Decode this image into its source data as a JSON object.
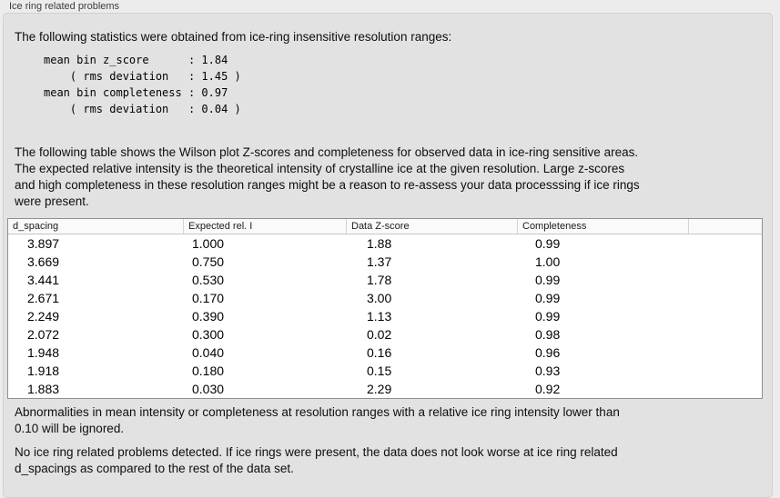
{
  "panel": {
    "title": "Ice ring related problems"
  },
  "intro_text": "The following statistics were obtained from ice-ring insensitive resolution ranges:",
  "stats_lines": [
    "mean bin z_score      : 1.84",
    "    ( rms deviation   : 1.45 )",
    "mean bin completeness : 0.97",
    "    ( rms deviation   : 0.04 )"
  ],
  "table_description_lines": [
    "The following table shows the Wilson plot Z-scores and completeness for observed data in ice-ring sensitive areas.",
    "The expected relative intensity is the theoretical intensity of crystalline ice at the given resolution. Large z-scores",
    "and high completeness in these resolution ranges might be a reason to re-assess your data processsing if ice rings",
    "were present."
  ],
  "table": {
    "columns": [
      "d_spacing",
      "Expected rel. I",
      "Data Z-score",
      "Completeness"
    ],
    "rows": [
      [
        "3.897",
        "1.000",
        "1.88",
        "0.99"
      ],
      [
        "3.669",
        "0.750",
        "1.37",
        "1.00"
      ],
      [
        "3.441",
        "0.530",
        "1.78",
        "0.99"
      ],
      [
        "2.671",
        "0.170",
        "3.00",
        "0.99"
      ],
      [
        "2.249",
        "0.390",
        "1.13",
        "0.99"
      ],
      [
        "2.072",
        "0.300",
        "0.02",
        "0.98"
      ],
      [
        "1.948",
        "0.040",
        "0.16",
        "0.96"
      ],
      [
        "1.918",
        "0.180",
        "0.15",
        "0.93"
      ],
      [
        "1.883",
        "0.030",
        "2.29",
        "0.92"
      ]
    ]
  },
  "ignore_note_lines": [
    "Abnormalities in mean intensity or completeness at resolution ranges with a relative ice ring intensity lower than",
    "0.10 will be ignored."
  ],
  "conclusion_lines": [
    "No ice ring related problems detected. If ice rings were present, the data does not look worse at ice ring related",
    "d_spacings as compared to the rest of the data set."
  ],
  "colors": {
    "page_bg": "#ececec",
    "panel_bg": "#e2e2e2",
    "table_bg": "#ffffff",
    "table_border": "#8f8f8f"
  }
}
